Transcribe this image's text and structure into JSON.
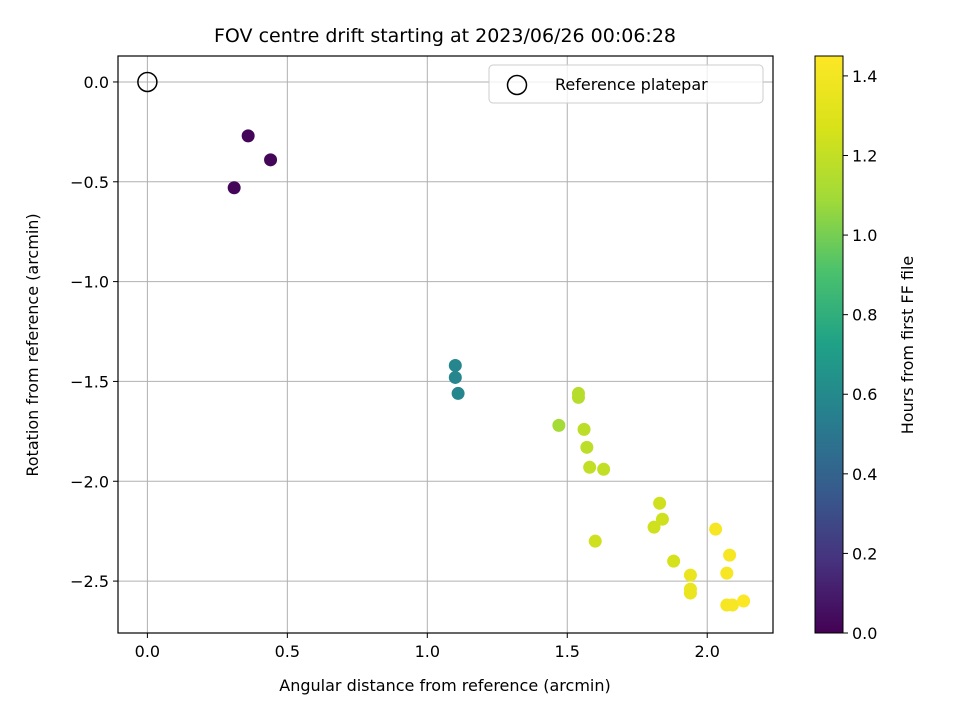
{
  "chart_data": {
    "type": "scatter",
    "title": "FOV centre drift starting at 2023/06/26 00:06:28",
    "xlabel": "Angular distance from reference (arcmin)",
    "ylabel": "Rotation from reference (arcmin)",
    "xlim": [
      -0.105,
      2.235
    ],
    "ylim": [
      -2.76,
      0.13
    ],
    "xticks": [
      0.0,
      0.5,
      1.0,
      1.5,
      2.0
    ],
    "yticks": [
      0.0,
      -0.5,
      -1.0,
      -1.5,
      -2.0,
      -2.5
    ],
    "xtick_labels": [
      "0.0",
      "0.5",
      "1.0",
      "1.5",
      "2.0"
    ],
    "ytick_labels": [
      "0.0",
      "−0.5",
      "−1.0",
      "−1.5",
      "−2.0",
      "−2.5"
    ],
    "grid": true,
    "legend": {
      "placement": "top-right",
      "entries": [
        "Reference platepar"
      ]
    },
    "reference_point": {
      "x": 0.0,
      "y": 0.0,
      "marker": "open-circle",
      "color": "#000000"
    },
    "colorbar": {
      "label": "Hours from first FF file",
      "colormap": "viridis",
      "range": [
        0.0,
        1.45
      ],
      "ticks": [
        0.0,
        0.2,
        0.4,
        0.6,
        0.8,
        1.0,
        1.2,
        1.4
      ],
      "tick_labels": [
        "0.0",
        "0.2",
        "0.4",
        "0.6",
        "0.8",
        "1.0",
        "1.2",
        "1.4"
      ]
    },
    "points": [
      {
        "x": 0.36,
        "y": -0.27,
        "t": 0.02
      },
      {
        "x": 0.44,
        "y": -0.39,
        "t": 0.02
      },
      {
        "x": 0.31,
        "y": -0.53,
        "t": 0.02
      },
      {
        "x": 1.1,
        "y": -1.42,
        "t": 0.58
      },
      {
        "x": 1.1,
        "y": -1.48,
        "t": 0.58
      },
      {
        "x": 1.11,
        "y": -1.56,
        "t": 0.58
      },
      {
        "x": 1.47,
        "y": -1.72,
        "t": 1.1
      },
      {
        "x": 1.54,
        "y": -1.56,
        "t": 1.16
      },
      {
        "x": 1.54,
        "y": -1.58,
        "t": 1.16
      },
      {
        "x": 1.56,
        "y": -1.74,
        "t": 1.18
      },
      {
        "x": 1.57,
        "y": -1.83,
        "t": 1.18
      },
      {
        "x": 1.58,
        "y": -1.93,
        "t": 1.2
      },
      {
        "x": 1.63,
        "y": -1.94,
        "t": 1.2
      },
      {
        "x": 1.6,
        "y": -2.3,
        "t": 1.24
      },
      {
        "x": 1.83,
        "y": -2.11,
        "t": 1.24
      },
      {
        "x": 1.84,
        "y": -2.19,
        "t": 1.24
      },
      {
        "x": 1.81,
        "y": -2.23,
        "t": 1.24
      },
      {
        "x": 1.88,
        "y": -2.4,
        "t": 1.26
      },
      {
        "x": 1.94,
        "y": -2.47,
        "t": 1.36
      },
      {
        "x": 1.94,
        "y": -2.54,
        "t": 1.36
      },
      {
        "x": 1.94,
        "y": -2.56,
        "t": 1.36
      },
      {
        "x": 2.03,
        "y": -2.24,
        "t": 1.42
      },
      {
        "x": 2.08,
        "y": -2.37,
        "t": 1.42
      },
      {
        "x": 2.07,
        "y": -2.46,
        "t": 1.42
      },
      {
        "x": 2.07,
        "y": -2.62,
        "t": 1.42
      },
      {
        "x": 2.09,
        "y": -2.62,
        "t": 1.42
      },
      {
        "x": 2.13,
        "y": -2.6,
        "t": 1.44
      }
    ]
  }
}
